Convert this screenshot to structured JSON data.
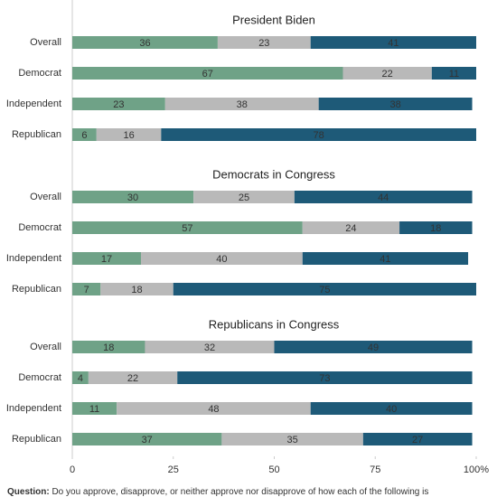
{
  "chart_data": {
    "type": "stacked-bar",
    "orientation": "horizontal",
    "colors": [
      "#6fa287",
      "#b9b9b9",
      "#1e5a78"
    ],
    "label_colors": [
      "#ffffff",
      "#333333",
      "#ffffff"
    ],
    "xlim": [
      0,
      100
    ],
    "xticks": [
      0,
      25,
      50,
      75,
      {
        "value": 100,
        "label": "100%"
      }
    ],
    "panels": [
      {
        "title": "President Biden",
        "categories": [
          "Overall",
          "Democrat",
          "Independent",
          "Republican"
        ],
        "series": [
          {
            "values": [
              36,
              67,
              23,
              6
            ]
          },
          {
            "values": [
              23,
              22,
              38,
              16
            ]
          },
          {
            "values": [
              41,
              11,
              38,
              78
            ]
          }
        ]
      },
      {
        "title": "Democrats in Congress",
        "categories": [
          "Overall",
          "Democrat",
          "Independent",
          "Republican"
        ],
        "series": [
          {
            "values": [
              30,
              57,
              17,
              7
            ]
          },
          {
            "values": [
              25,
              24,
              40,
              18
            ]
          },
          {
            "values": [
              44,
              18,
              41,
              75
            ]
          }
        ]
      },
      {
        "title": "Republicans in Congress",
        "categories": [
          "Overall",
          "Democrat",
          "Independent",
          "Republican"
        ],
        "series": [
          {
            "values": [
              18,
              4,
              11,
              37
            ]
          },
          {
            "values": [
              32,
              22,
              48,
              35
            ]
          },
          {
            "values": [
              49,
              73,
              40,
              27
            ]
          }
        ]
      }
    ],
    "caption_label": "Question:",
    "caption": "Do you approve, disapprove, or neither approve nor disapprove of how each of the following is"
  }
}
